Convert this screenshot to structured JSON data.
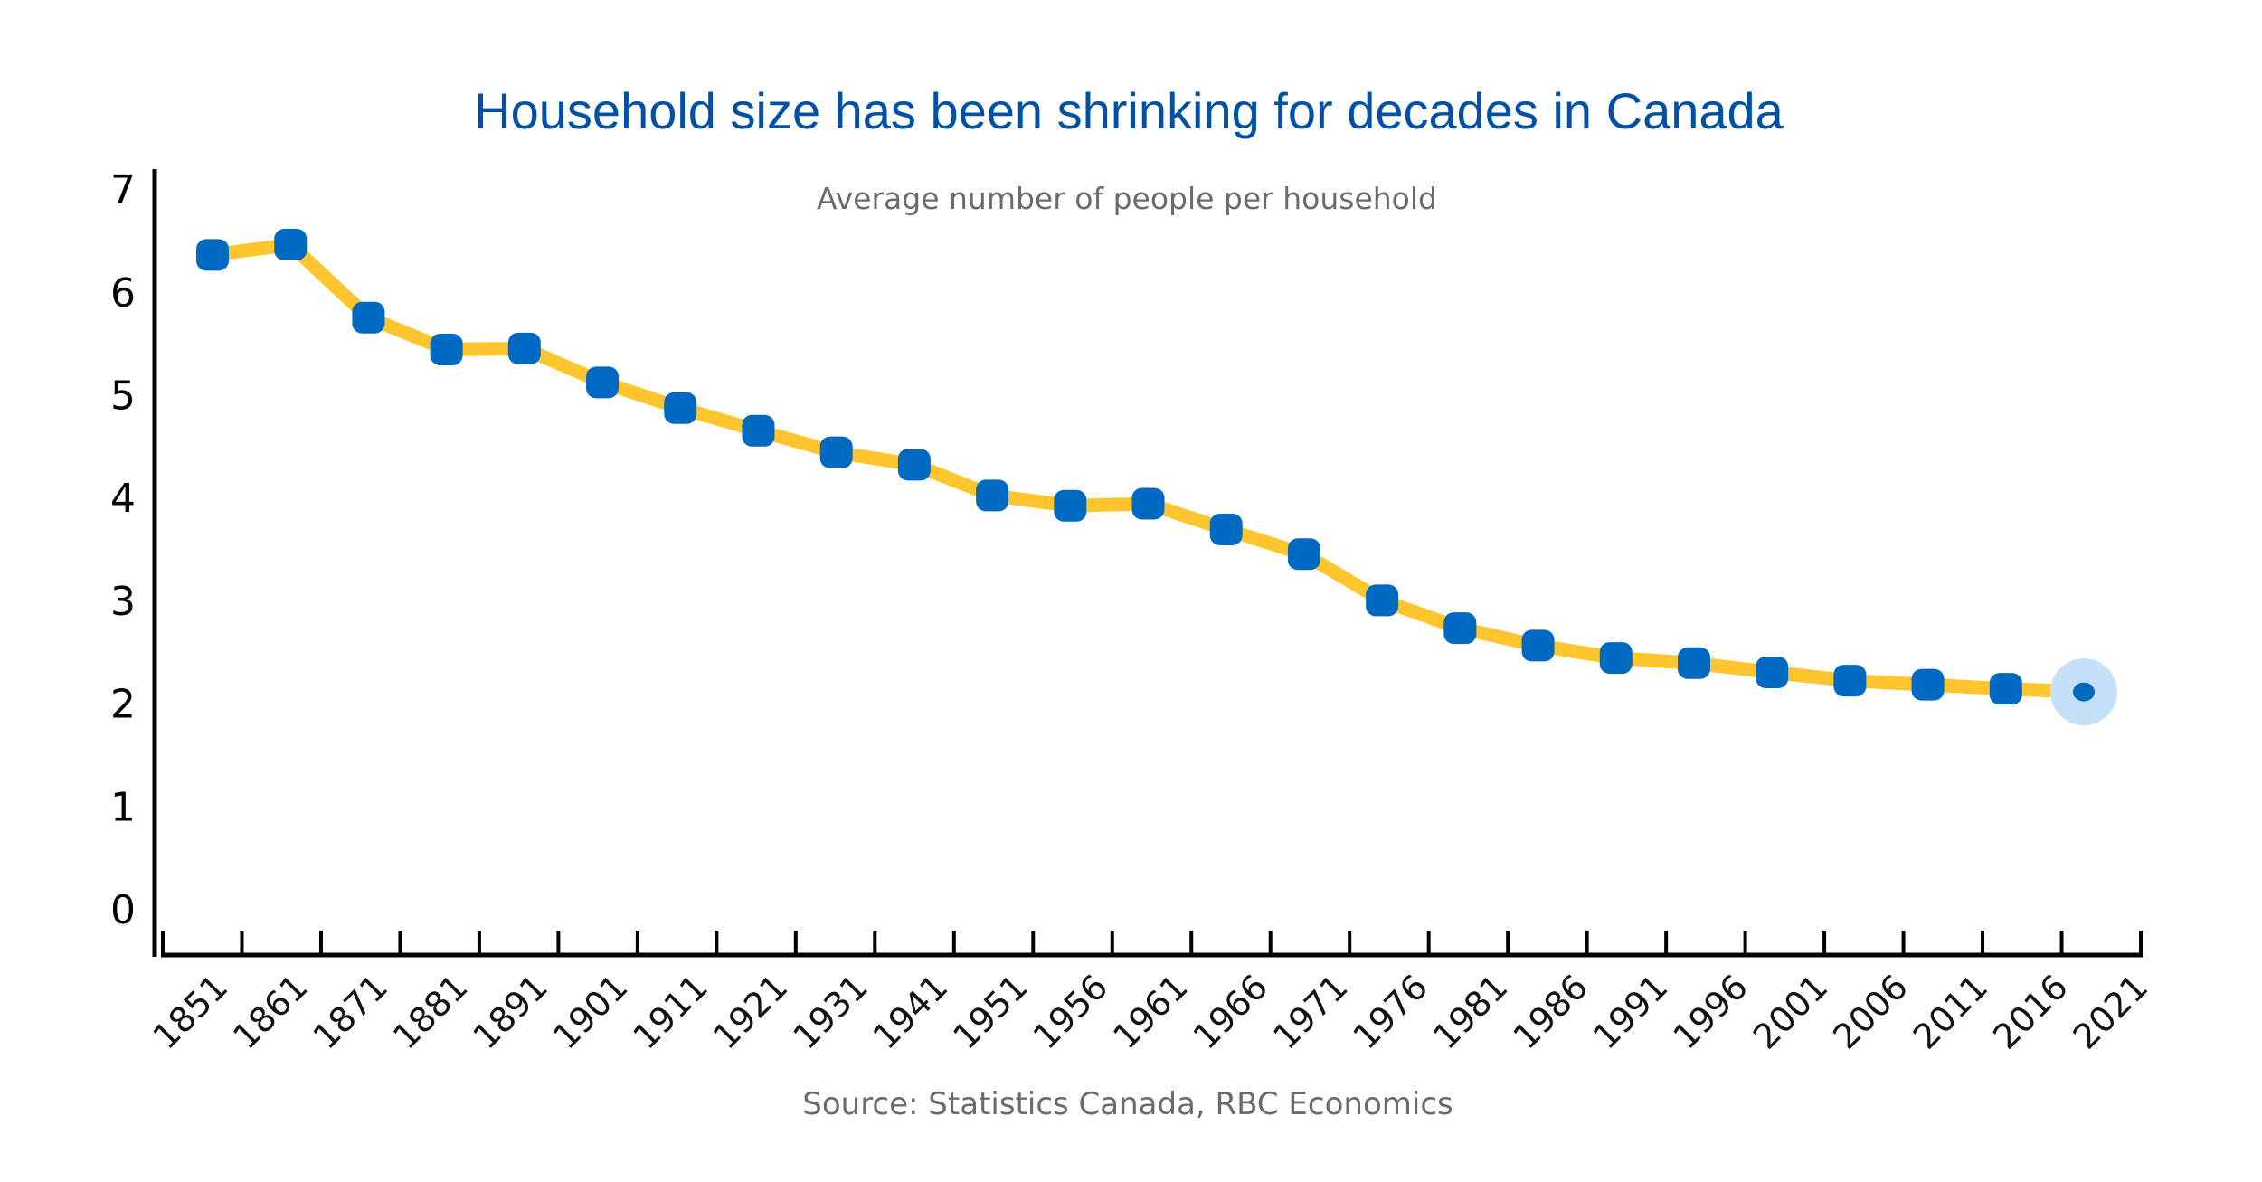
{
  "colors": {
    "title": "#0050a5",
    "subtitle": "#6b6b6b",
    "source": "#6b6b6b",
    "axis": "#000000",
    "line": "#fec52e",
    "marker": "#006ac3",
    "highlight_halo": "#c5e1f7"
  },
  "chart_data": {
    "type": "line",
    "title": "Household size has been shrinking for decades in Canada",
    "subtitle": "Average number of people per household",
    "source": "Source: Statistics Canada, RBC Economics",
    "xlabel": "",
    "ylabel": "",
    "ylim": [
      0,
      7
    ],
    "yticks": [
      "0",
      "1",
      "2",
      "3",
      "4",
      "5",
      "6",
      "7"
    ],
    "grid": false,
    "legend": "none",
    "categories": [
      "1851",
      "1861",
      "1871",
      "1881",
      "1891",
      "1901",
      "1911",
      "1921",
      "1931",
      "1941",
      "1951",
      "1956",
      "1961",
      "1966",
      "1971",
      "1976",
      "1981",
      "1986",
      "1991",
      "1996",
      "2001",
      "2006",
      "2011",
      "2016",
      "2021"
    ],
    "series": [
      {
        "name": "Average number of people per household",
        "values": [
          6.36,
          6.46,
          5.75,
          5.44,
          5.45,
          5.12,
          4.87,
          4.65,
          4.44,
          4.32,
          4.02,
          3.92,
          3.94,
          3.69,
          3.45,
          3.0,
          2.73,
          2.56,
          2.44,
          2.39,
          2.3,
          2.22,
          2.18,
          2.14,
          2.11
        ]
      }
    ],
    "highlighted_point": "2021"
  }
}
